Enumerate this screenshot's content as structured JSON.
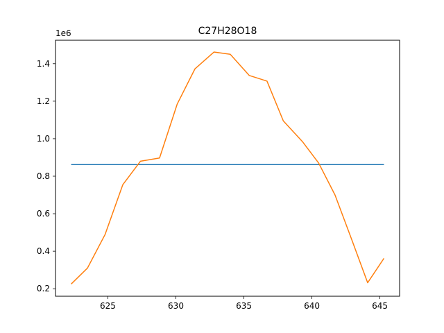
{
  "chart_data": {
    "type": "line",
    "title": "C27H28O18",
    "xlabel": "",
    "ylabel": "",
    "y_offset_label": "1e6",
    "xlim": [
      621.15,
      646.45
    ],
    "ylim": [
      160000,
      1525000
    ],
    "x_ticks": [
      625,
      630,
      635,
      640,
      645
    ],
    "x_tick_labels": [
      "625",
      "630",
      "635",
      "640",
      "645"
    ],
    "y_ticks": [
      200000,
      400000,
      600000,
      800000,
      1000000,
      1200000,
      1400000
    ],
    "y_tick_labels": [
      "0.2",
      "0.4",
      "0.6",
      "0.8",
      "1.0",
      "1.2",
      "1.4"
    ],
    "grid": false,
    "legend": "none",
    "series": [
      {
        "color": "#1f77b4",
        "x": [
          622.3,
          645.3
        ],
        "y": [
          862000,
          862000
        ]
      },
      {
        "color": "#ff7f0e",
        "x": [
          622.3,
          623.5,
          624.8,
          626.1,
          627.4,
          628.8,
          630.1,
          631.4,
          632.8,
          634.0,
          635.4,
          636.7,
          637.9,
          639.3,
          640.5,
          641.7,
          642.9,
          644.1,
          645.3
        ],
        "y": [
          225000,
          310000,
          490000,
          755000,
          880000,
          897000,
          1185000,
          1372000,
          1462000,
          1450000,
          1337000,
          1307000,
          1095000,
          985000,
          870000,
          700000,
          468000,
          232000,
          362000
        ]
      }
    ]
  }
}
